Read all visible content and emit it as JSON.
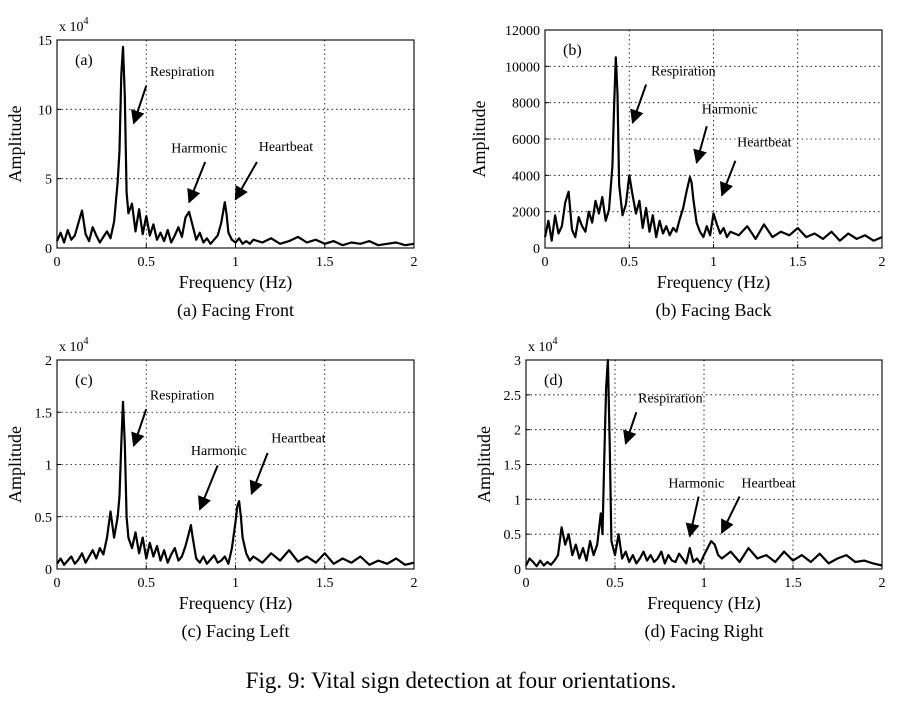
{
  "figure_caption": "Fig. 9: Vital sign detection at four orientations.",
  "chart_data": [
    {
      "type": "line",
      "panel_tag": "(a)",
      "caption": "(a) Facing Front",
      "xlabel": "Frequency (Hz)",
      "ylabel": "Amplitude",
      "multiplier": "x 10",
      "multiplier_exp": "4",
      "xlim": [
        0,
        2
      ],
      "ylim": [
        0,
        15
      ],
      "xticks": [
        0,
        0.5,
        1,
        1.5,
        2
      ],
      "xtick_labels": [
        "0",
        "0.5",
        "1",
        "1.5",
        "2"
      ],
      "yticks": [
        0,
        5,
        10,
        15
      ],
      "ytick_labels": [
        "0",
        "5",
        "10",
        "15"
      ],
      "grid": true,
      "series": [
        {
          "x": [
            0,
            0.02,
            0.04,
            0.06,
            0.08,
            0.1,
            0.12,
            0.14,
            0.16,
            0.18,
            0.2,
            0.22,
            0.24,
            0.26,
            0.28,
            0.3,
            0.32,
            0.34,
            0.35,
            0.36,
            0.37,
            0.38,
            0.39,
            0.4,
            0.42,
            0.44,
            0.46,
            0.48,
            0.5,
            0.52,
            0.54,
            0.56,
            0.58,
            0.6,
            0.62,
            0.64,
            0.66,
            0.68,
            0.7,
            0.72,
            0.74,
            0.76,
            0.78,
            0.8,
            0.82,
            0.84,
            0.86,
            0.88,
            0.9,
            0.92,
            0.94,
            0.95,
            0.96,
            0.98,
            1.0,
            1.02,
            1.04,
            1.06,
            1.08,
            1.1,
            1.15,
            1.2,
            1.25,
            1.3,
            1.35,
            1.4,
            1.45,
            1.5,
            1.55,
            1.6,
            1.65,
            1.7,
            1.75,
            1.8,
            1.85,
            1.9,
            1.95,
            2.0
          ],
          "y": [
            0.5,
            1.1,
            0.4,
            1.3,
            0.6,
            0.9,
            1.8,
            2.7,
            1.0,
            0.5,
            1.5,
            0.9,
            0.4,
            0.8,
            1.2,
            0.7,
            1.9,
            4.8,
            7.0,
            12.5,
            14.5,
            11.0,
            4.0,
            2.5,
            3.2,
            1.2,
            2.8,
            1.0,
            2.3,
            0.9,
            1.7,
            0.6,
            1.1,
            0.5,
            1.3,
            0.4,
            0.9,
            1.5,
            0.8,
            2.2,
            2.6,
            1.6,
            0.6,
            1.1,
            0.4,
            0.7,
            0.3,
            0.6,
            0.9,
            1.8,
            3.3,
            2.4,
            1.1,
            0.6,
            0.4,
            0.7,
            0.3,
            0.5,
            0.3,
            0.6,
            0.4,
            0.7,
            0.3,
            0.5,
            0.8,
            0.4,
            0.6,
            0.3,
            0.5,
            0.2,
            0.4,
            0.3,
            0.5,
            0.2,
            0.3,
            0.4,
            0.2,
            0.3
          ]
        }
      ],
      "annotations": [
        {
          "text": "Respiration",
          "x": 0.52,
          "y": 12.4,
          "arrow_from": [
            0.5,
            11.7
          ],
          "arrow_to": [
            0.43,
            9.0
          ]
        },
        {
          "text": "Harmonic",
          "x": 0.64,
          "y": 6.9,
          "arrow_from": [
            0.83,
            6.2
          ],
          "arrow_to": [
            0.74,
            3.3
          ]
        },
        {
          "text": "Heartbeat",
          "x": 1.13,
          "y": 7.0,
          "arrow_from": [
            1.12,
            6.2
          ],
          "arrow_to": [
            1.0,
            3.5
          ]
        }
      ]
    },
    {
      "type": "line",
      "panel_tag": "(b)",
      "caption": "(b) Facing Back",
      "xlabel": "Frequency (Hz)",
      "ylabel": "Amplitude",
      "multiplier": "",
      "multiplier_exp": "",
      "xlim": [
        0,
        2
      ],
      "ylim": [
        0,
        12000
      ],
      "xticks": [
        0,
        0.5,
        1,
        1.5,
        2
      ],
      "xtick_labels": [
        "0",
        "0.5",
        "1",
        "1.5",
        "2"
      ],
      "yticks": [
        0,
        2000,
        4000,
        6000,
        8000,
        10000,
        12000
      ],
      "ytick_labels": [
        "0",
        "2000",
        "4000",
        "6000",
        "8000",
        "10000",
        "12000"
      ],
      "grid": true,
      "series": [
        {
          "x": [
            0,
            0.02,
            0.04,
            0.06,
            0.08,
            0.1,
            0.12,
            0.14,
            0.16,
            0.18,
            0.2,
            0.22,
            0.24,
            0.26,
            0.28,
            0.3,
            0.32,
            0.34,
            0.36,
            0.38,
            0.4,
            0.41,
            0.42,
            0.43,
            0.44,
            0.46,
            0.48,
            0.5,
            0.52,
            0.54,
            0.56,
            0.58,
            0.6,
            0.62,
            0.64,
            0.66,
            0.68,
            0.7,
            0.72,
            0.74,
            0.76,
            0.78,
            0.8,
            0.82,
            0.84,
            0.86,
            0.87,
            0.88,
            0.9,
            0.92,
            0.94,
            0.96,
            0.98,
            1.0,
            1.02,
            1.04,
            1.06,
            1.08,
            1.1,
            1.15,
            1.2,
            1.25,
            1.3,
            1.35,
            1.4,
            1.45,
            1.5,
            1.55,
            1.6,
            1.65,
            1.7,
            1.75,
            1.8,
            1.85,
            1.9,
            1.95,
            2.0
          ],
          "y": [
            600,
            1500,
            400,
            1800,
            800,
            1200,
            2500,
            3100,
            1000,
            600,
            1700,
            1200,
            900,
            2000,
            1400,
            2600,
            1900,
            2800,
            1500,
            2100,
            4500,
            7800,
            10500,
            8500,
            3500,
            1800,
            2400,
            4000,
            2900,
            1900,
            2600,
            1100,
            2200,
            900,
            1800,
            600,
            1500,
            800,
            1200,
            700,
            1100,
            900,
            1600,
            2200,
            3100,
            3900,
            3600,
            2700,
            1400,
            900,
            600,
            1200,
            700,
            1900,
            1300,
            800,
            1100,
            600,
            900,
            700,
            1200,
            500,
            1300,
            600,
            900,
            700,
            1100,
            600,
            800,
            500,
            900,
            400,
            800,
            500,
            700,
            400,
            600
          ]
        }
      ],
      "annotations": [
        {
          "text": "Respiration",
          "x": 0.63,
          "y": 9500,
          "arrow_from": [
            0.6,
            9000
          ],
          "arrow_to": [
            0.52,
            6900
          ]
        },
        {
          "text": "Harmonic",
          "x": 0.93,
          "y": 7400,
          "arrow_from": [
            0.96,
            6700
          ],
          "arrow_to": [
            0.9,
            4700
          ]
        },
        {
          "text": "Heartbeat",
          "x": 1.14,
          "y": 5600,
          "arrow_from": [
            1.13,
            4800
          ],
          "arrow_to": [
            1.05,
            2900
          ]
        }
      ]
    },
    {
      "type": "line",
      "panel_tag": "(c)",
      "caption": "(c) Facing Left",
      "xlabel": "Frequency (Hz)",
      "ylabel": "Amplitude",
      "multiplier": "x 10",
      "multiplier_exp": "4",
      "xlim": [
        0,
        2
      ],
      "ylim": [
        0,
        2
      ],
      "xticks": [
        0,
        0.5,
        1,
        1.5,
        2
      ],
      "xtick_labels": [
        "0",
        "0.5",
        "1",
        "1.5",
        "2"
      ],
      "yticks": [
        0,
        0.5,
        1,
        1.5,
        2
      ],
      "ytick_labels": [
        "0",
        "0.5",
        "1",
        "1.5",
        "2"
      ],
      "grid": true,
      "series": [
        {
          "x": [
            0,
            0.02,
            0.04,
            0.06,
            0.08,
            0.1,
            0.12,
            0.14,
            0.16,
            0.18,
            0.2,
            0.22,
            0.24,
            0.26,
            0.28,
            0.3,
            0.32,
            0.34,
            0.35,
            0.36,
            0.37,
            0.38,
            0.39,
            0.4,
            0.42,
            0.44,
            0.46,
            0.48,
            0.5,
            0.52,
            0.54,
            0.56,
            0.58,
            0.6,
            0.62,
            0.64,
            0.66,
            0.68,
            0.7,
            0.72,
            0.74,
            0.75,
            0.76,
            0.78,
            0.8,
            0.82,
            0.84,
            0.86,
            0.88,
            0.9,
            0.92,
            0.94,
            0.96,
            0.98,
            1.0,
            1.01,
            1.02,
            1.03,
            1.04,
            1.06,
            1.08,
            1.1,
            1.15,
            1.2,
            1.25,
            1.3,
            1.35,
            1.4,
            1.45,
            1.5,
            1.55,
            1.6,
            1.65,
            1.7,
            1.75,
            1.8,
            1.85,
            1.9,
            1.95,
            2.0
          ],
          "y": [
            0.05,
            0.1,
            0.04,
            0.08,
            0.12,
            0.05,
            0.09,
            0.15,
            0.06,
            0.12,
            0.18,
            0.1,
            0.2,
            0.14,
            0.3,
            0.55,
            0.3,
            0.5,
            0.7,
            1.2,
            1.6,
            1.2,
            0.5,
            0.3,
            0.2,
            0.35,
            0.15,
            0.3,
            0.1,
            0.25,
            0.12,
            0.22,
            0.08,
            0.18,
            0.06,
            0.14,
            0.2,
            0.08,
            0.12,
            0.22,
            0.35,
            0.42,
            0.3,
            0.1,
            0.06,
            0.12,
            0.05,
            0.09,
            0.13,
            0.06,
            0.08,
            0.12,
            0.05,
            0.2,
            0.45,
            0.6,
            0.65,
            0.5,
            0.3,
            0.15,
            0.08,
            0.12,
            0.06,
            0.15,
            0.08,
            0.18,
            0.07,
            0.12,
            0.06,
            0.15,
            0.05,
            0.1,
            0.06,
            0.12,
            0.04,
            0.08,
            0.05,
            0.1,
            0.04,
            0.06
          ]
        }
      ],
      "annotations": [
        {
          "text": "Respiration",
          "x": 0.52,
          "y": 1.62,
          "arrow_from": [
            0.5,
            1.53
          ],
          "arrow_to": [
            0.43,
            1.18
          ]
        },
        {
          "text": "Harmonic",
          "x": 0.75,
          "y": 1.09,
          "arrow_from": [
            0.9,
            0.99
          ],
          "arrow_to": [
            0.8,
            0.57
          ]
        },
        {
          "text": "Heartbeat",
          "x": 1.2,
          "y": 1.21,
          "arrow_from": [
            1.18,
            1.11
          ],
          "arrow_to": [
            1.09,
            0.72
          ]
        }
      ]
    },
    {
      "type": "line",
      "panel_tag": "(d)",
      "caption": "(d) Facing Right",
      "xlabel": "Frequency (Hz)",
      "ylabel": "Amplitude",
      "multiplier": "x 10",
      "multiplier_exp": "4",
      "xlim": [
        0,
        2
      ],
      "ylim": [
        0,
        3
      ],
      "xticks": [
        0,
        0.5,
        1,
        1.5,
        2
      ],
      "xtick_labels": [
        "0",
        "0.5",
        "1",
        "1.5",
        "2"
      ],
      "yticks": [
        0,
        0.5,
        1,
        1.5,
        2,
        2.5,
        3
      ],
      "ytick_labels": [
        "0",
        "0.5",
        "1",
        "1.5",
        "2",
        "2.5",
        "3"
      ],
      "grid": true,
      "series": [
        {
          "x": [
            0,
            0.02,
            0.04,
            0.06,
            0.08,
            0.1,
            0.12,
            0.14,
            0.16,
            0.18,
            0.2,
            0.22,
            0.24,
            0.26,
            0.28,
            0.3,
            0.32,
            0.34,
            0.36,
            0.38,
            0.4,
            0.42,
            0.43,
            0.44,
            0.45,
            0.46,
            0.47,
            0.48,
            0.5,
            0.52,
            0.54,
            0.56,
            0.58,
            0.6,
            0.62,
            0.64,
            0.66,
            0.68,
            0.7,
            0.72,
            0.74,
            0.76,
            0.78,
            0.8,
            0.82,
            0.84,
            0.86,
            0.88,
            0.9,
            0.92,
            0.94,
            0.96,
            0.98,
            1.0,
            1.02,
            1.04,
            1.06,
            1.08,
            1.1,
            1.15,
            1.2,
            1.25,
            1.3,
            1.35,
            1.4,
            1.45,
            1.5,
            1.55,
            1.6,
            1.65,
            1.7,
            1.75,
            1.8,
            1.85,
            1.9,
            1.95,
            2.0
          ],
          "y": [
            0.05,
            0.15,
            0.1,
            0.04,
            0.12,
            0.05,
            0.1,
            0.06,
            0.12,
            0.2,
            0.6,
            0.35,
            0.5,
            0.2,
            0.35,
            0.15,
            0.3,
            0.12,
            0.4,
            0.2,
            0.35,
            0.8,
            0.5,
            1.6,
            2.6,
            3.0,
            1.8,
            0.4,
            0.2,
            0.5,
            0.15,
            0.25,
            0.1,
            0.2,
            0.08,
            0.15,
            0.25,
            0.12,
            0.2,
            0.1,
            0.15,
            0.25,
            0.08,
            0.2,
            0.12,
            0.1,
            0.22,
            0.15,
            0.08,
            0.3,
            0.1,
            0.15,
            0.08,
            0.2,
            0.3,
            0.4,
            0.35,
            0.2,
            0.15,
            0.25,
            0.1,
            0.3,
            0.15,
            0.2,
            0.1,
            0.25,
            0.12,
            0.2,
            0.1,
            0.22,
            0.08,
            0.15,
            0.2,
            0.1,
            0.12,
            0.08,
            0.05
          ]
        }
      ],
      "annotations": [
        {
          "text": "Respiration",
          "x": 0.63,
          "y": 2.39,
          "arrow_from": [
            0.62,
            2.25
          ],
          "arrow_to": [
            0.56,
            1.8
          ]
        },
        {
          "text": "Harmonic",
          "x": 0.8,
          "y": 1.17,
          "arrow_from": [
            0.97,
            1.04
          ],
          "arrow_to": [
            0.92,
            0.47
          ]
        },
        {
          "text": "Heartbeat",
          "x": 1.21,
          "y": 1.17,
          "arrow_from": [
            1.2,
            1.04
          ],
          "arrow_to": [
            1.1,
            0.52
          ]
        }
      ]
    }
  ]
}
